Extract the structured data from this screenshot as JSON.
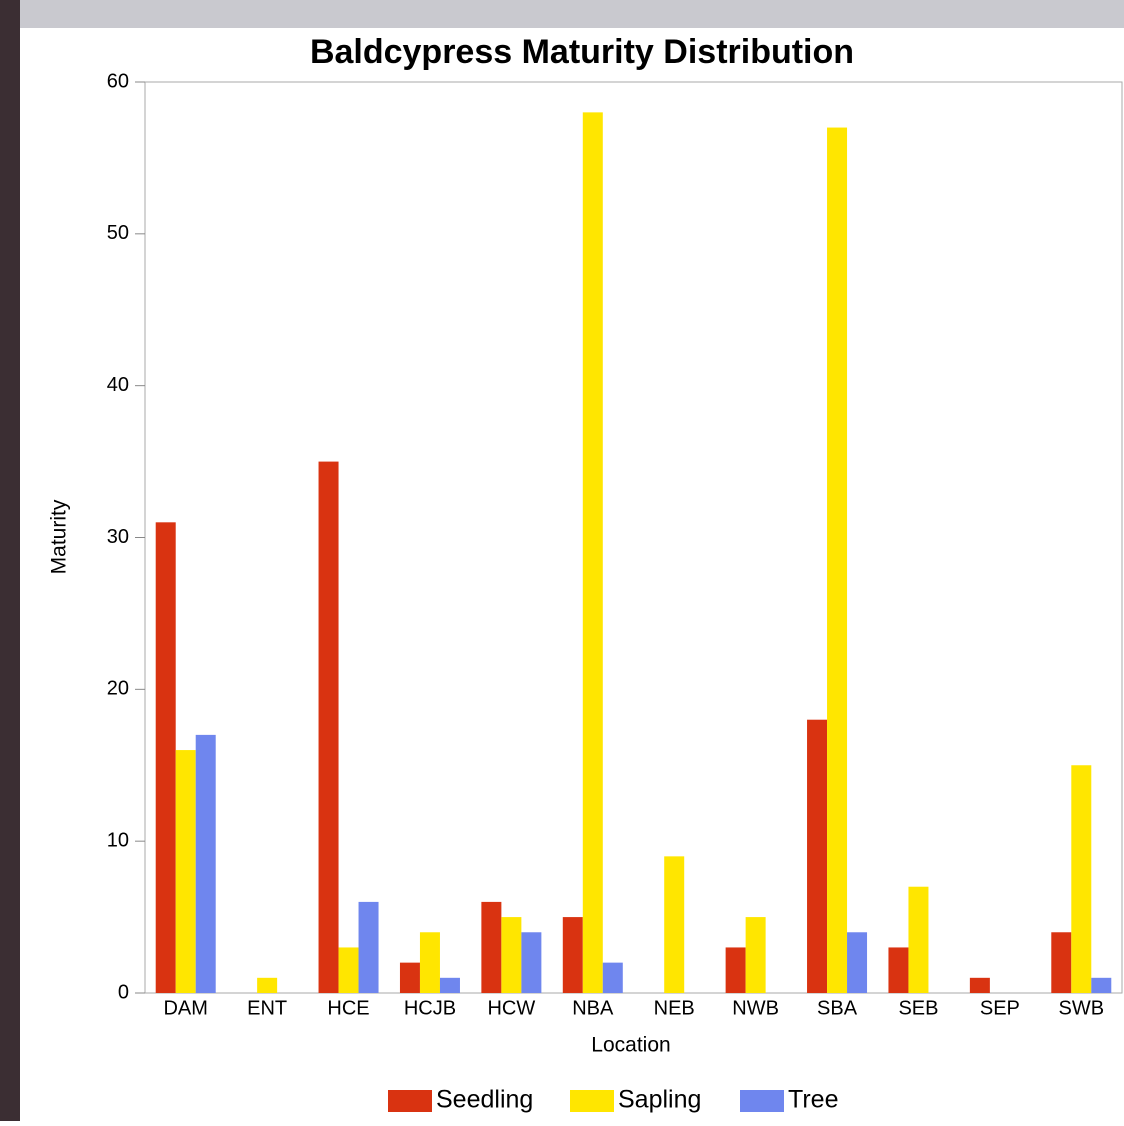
{
  "chart_data": {
    "type": "bar",
    "title": "Baldcypress Maturity Distribution",
    "x_label": "Location",
    "y_label": "Maturity",
    "categories": [
      "DAM",
      "ENT",
      "HCE",
      "HCJB",
      "HCW",
      "NBA",
      "NEB",
      "NWB",
      "SBA",
      "SEB",
      "SEP",
      "SWB"
    ],
    "series": [
      {
        "name": "Seedling",
        "color": "#d93311",
        "values": [
          31,
          0,
          35,
          2,
          6,
          5,
          0,
          3,
          18,
          3,
          1,
          4
        ]
      },
      {
        "name": "Sapling",
        "color": "#ffe600",
        "values": [
          16,
          1,
          3,
          4,
          5,
          58,
          9,
          5,
          57,
          7,
          0,
          15
        ]
      },
      {
        "name": "Tree",
        "color": "#6f86ee",
        "values": [
          17,
          0,
          6,
          1,
          4,
          2,
          0,
          0,
          4,
          0,
          0,
          1
        ]
      }
    ],
    "ylim": [
      0,
      60
    ],
    "yticks": [
      0,
      10,
      20,
      30,
      40,
      50,
      60
    ],
    "legend": "bottom"
  }
}
